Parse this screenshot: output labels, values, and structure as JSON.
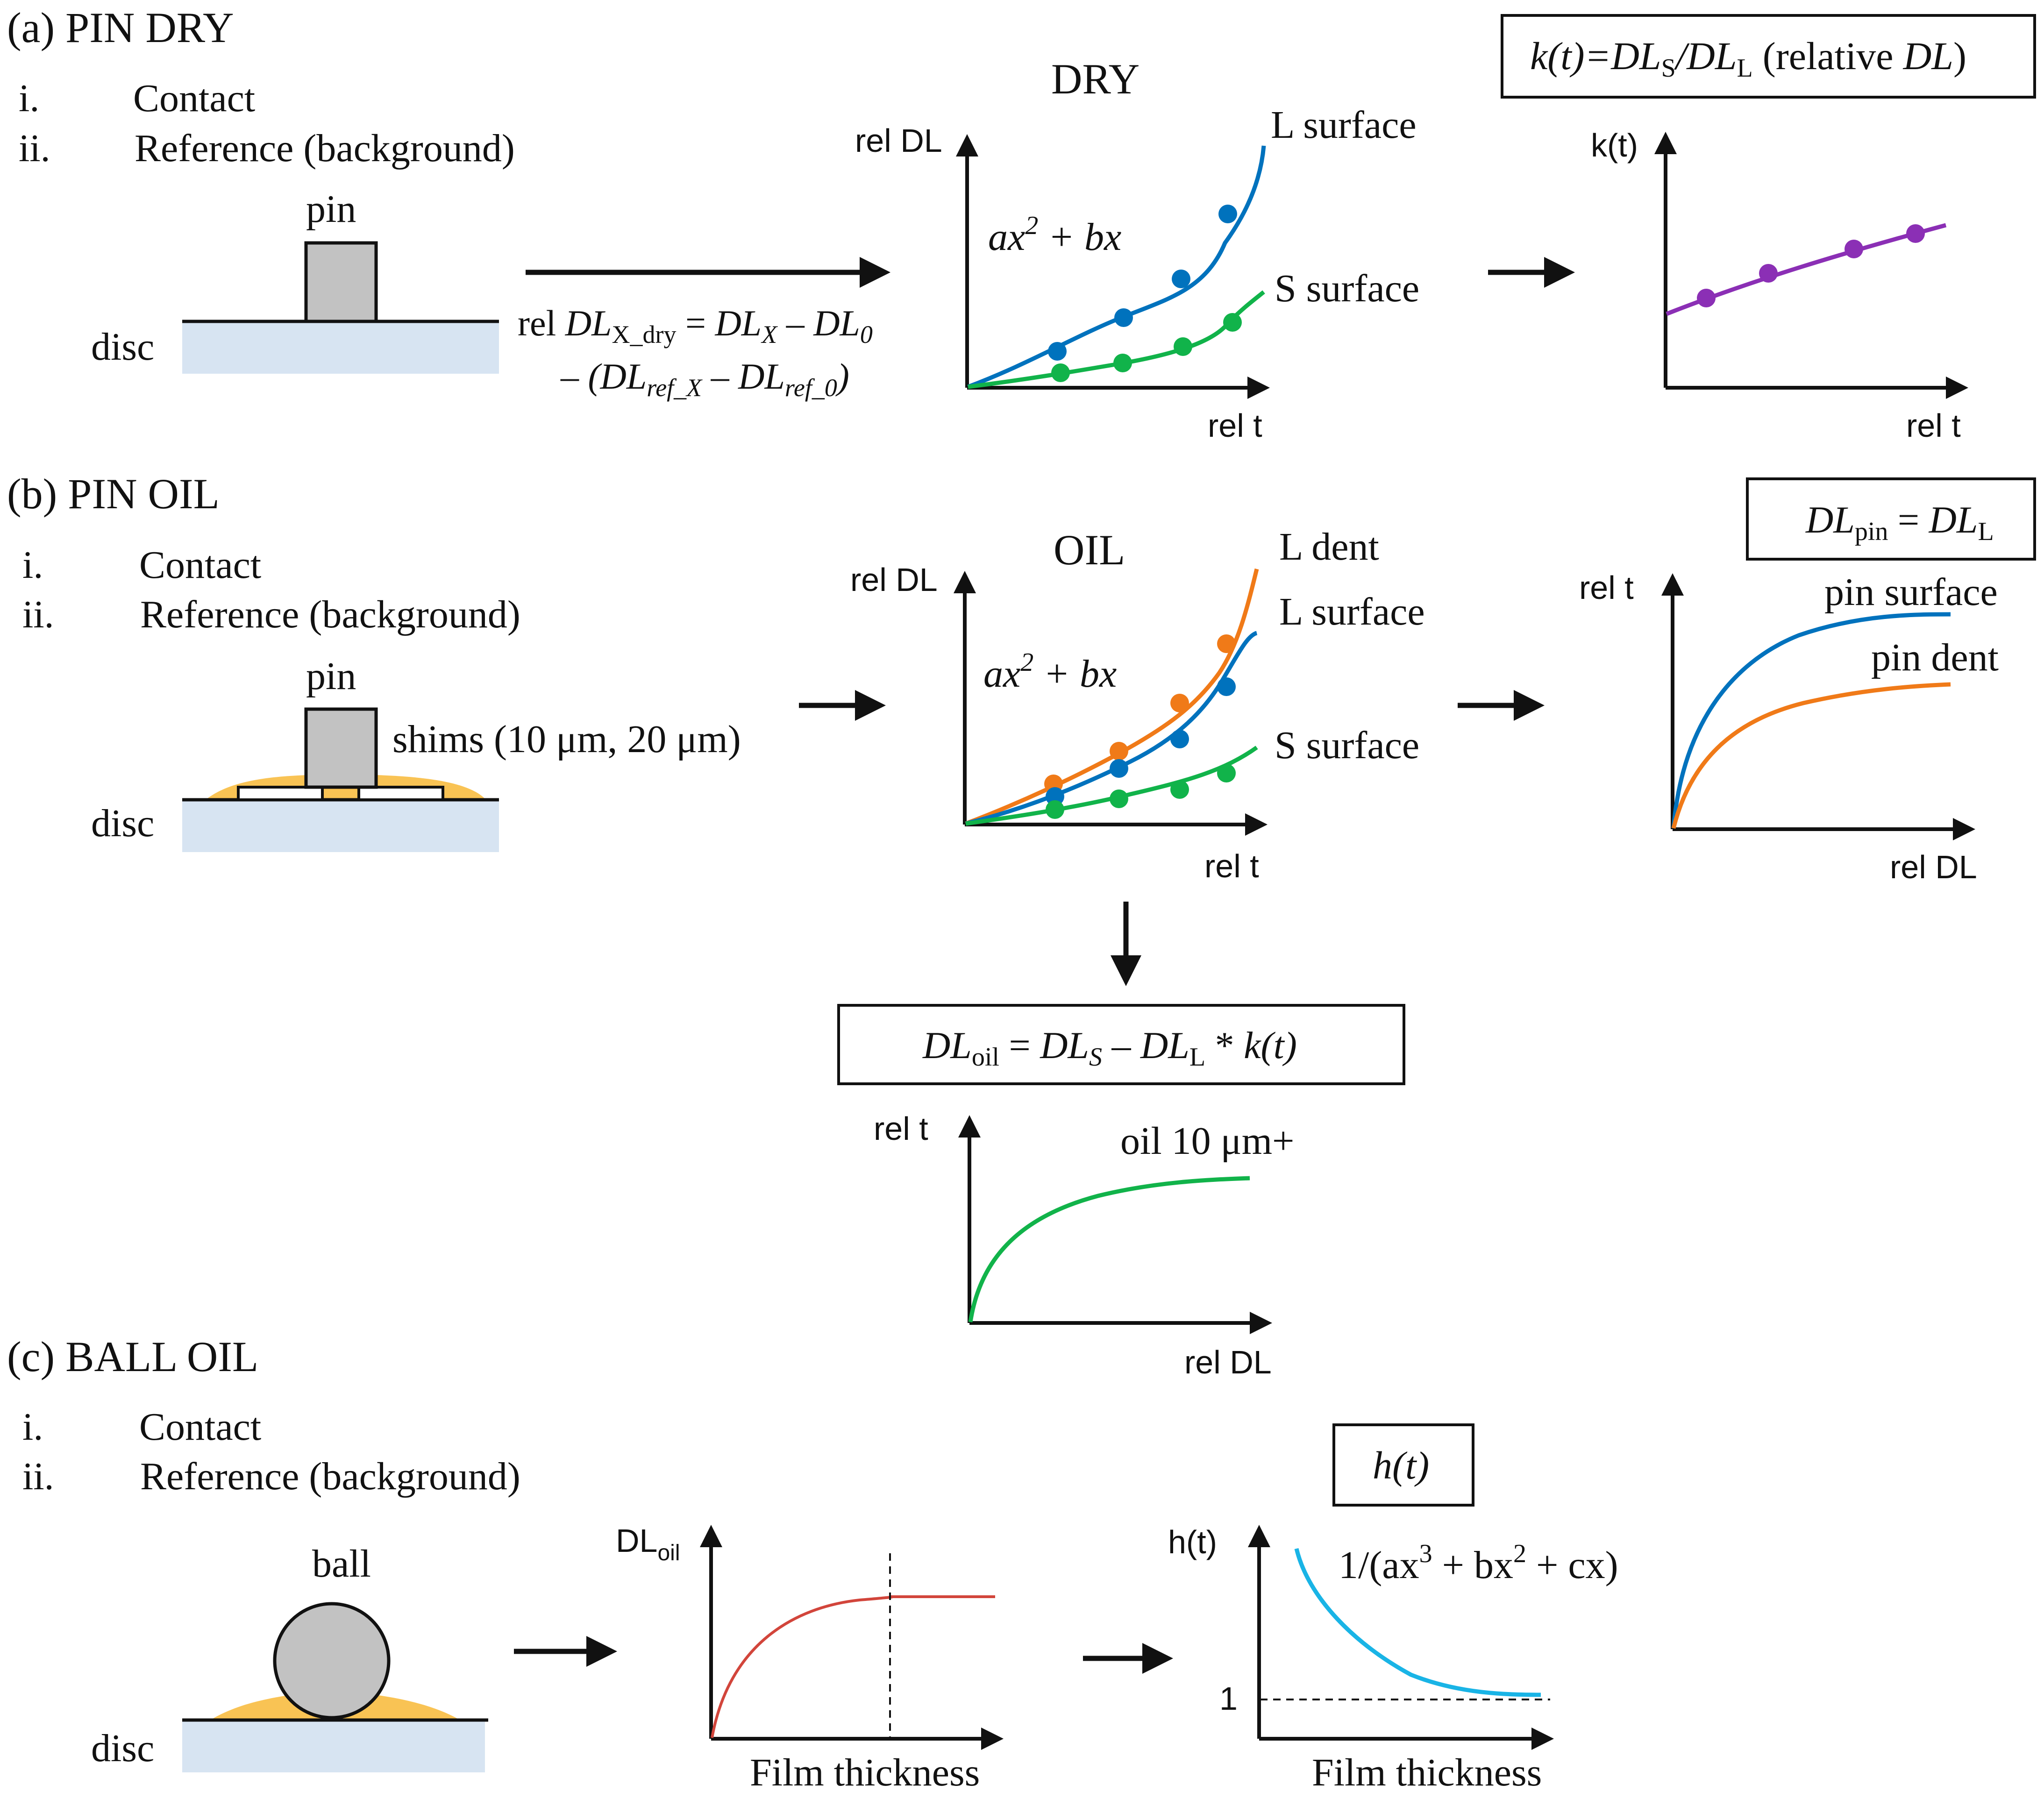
{
  "colors": {
    "blue": "#0072BD",
    "green": "#11B34A",
    "orange": "#F07A18",
    "purple": "#8B2FB5",
    "red": "#D2453B",
    "cyan": "#19B4E6",
    "disc": "#D7E4F2",
    "pin": "#C2C2C2",
    "oil": "#F9C354"
  },
  "section_a": {
    "title": "(a) PIN DRY",
    "item_1_num": "i.",
    "item_1": "Contact",
    "item_2_num": "ii.",
    "item_2": "Reference (background)",
    "pin_label": "pin",
    "disc_label": "disc",
    "formula": {
      "rel": "rel ",
      "dl": "DL",
      "sub_x_dry": "X_dry",
      "eq": " = ",
      "sub_x": "X",
      "minus": " – ",
      "sub_0": "0",
      "open": "– (",
      "sub_ref_x": "ref_X",
      "sub_ref_0": "ref_0",
      "close": ")"
    },
    "plot_title": "DRY",
    "y_label": "rel DL",
    "x_label": "rel t",
    "fit": {
      "a": "ax",
      "sq": "2",
      "rest": " + bx"
    },
    "curve_l": "L surface",
    "curve_s": "S surface",
    "k_box": {
      "k": "k(t)",
      "eq": "=",
      "dl": "DL",
      "sub_s": "S",
      "slash": "/",
      "sub_l": "L",
      "rel": " (relative ",
      "dl2": "DL",
      "close": ")"
    },
    "k_y_label": "k(t)",
    "k_x_label": "rel t"
  },
  "section_b": {
    "title": "(b) PIN OIL",
    "item_1_num": "i.",
    "item_1": "Contact",
    "item_2_num": "ii.",
    "item_2": "Reference (background)",
    "pin_label": "pin",
    "disc_label": "disc",
    "shims_label": "shims (10 μm, 20 μm)",
    "plot_title": "OIL",
    "y_label": "rel DL",
    "x_label": "rel t",
    "fit": {
      "a": "ax",
      "sq": "2",
      "rest": " + bx"
    },
    "curve_ld": "L dent",
    "curve_ls": "L surface",
    "curve_ss": "S surface",
    "pin_box": {
      "dl": "DL",
      "sub_pin": "pin",
      "eq": " = ",
      "dl2": "DL",
      "sub_l": "L"
    },
    "pin_y_label": "rel t",
    "pin_x_label": "rel DL",
    "pin_surface": "pin surface",
    "pin_dent": "pin dent",
    "oil_box": {
      "dl": "DL",
      "sub_oil": "oil",
      "eq": " = ",
      "dl2": "DL",
      "sub_s": "S",
      "minus": " – ",
      "dl3": "DL",
      "sub_l": "L",
      "star": " * ",
      "k": "k(t)"
    },
    "oil_y_label": "rel t",
    "oil_x_label": "rel DL",
    "oil_curve": "oil 10 μm+"
  },
  "section_c": {
    "title": "(c) BALL OIL",
    "item_1_num": "i.",
    "item_1": "Contact",
    "item_2_num": "ii.",
    "item_2": "Reference (background)",
    "ball_label": "ball",
    "disc_label": "disc",
    "dl_y_label": "DL",
    "dl_y_sub": "oil",
    "dl_x_label": "Film thickness",
    "h_box": "h(t)",
    "h_y_label": "h(t)",
    "h_x_label": "Film thickness",
    "h_one": "1",
    "h_formula": {
      "a": "1/(ax",
      "c3": "3",
      "b": " + bx",
      "c2": "2",
      "c": " + cx)"
    }
  }
}
